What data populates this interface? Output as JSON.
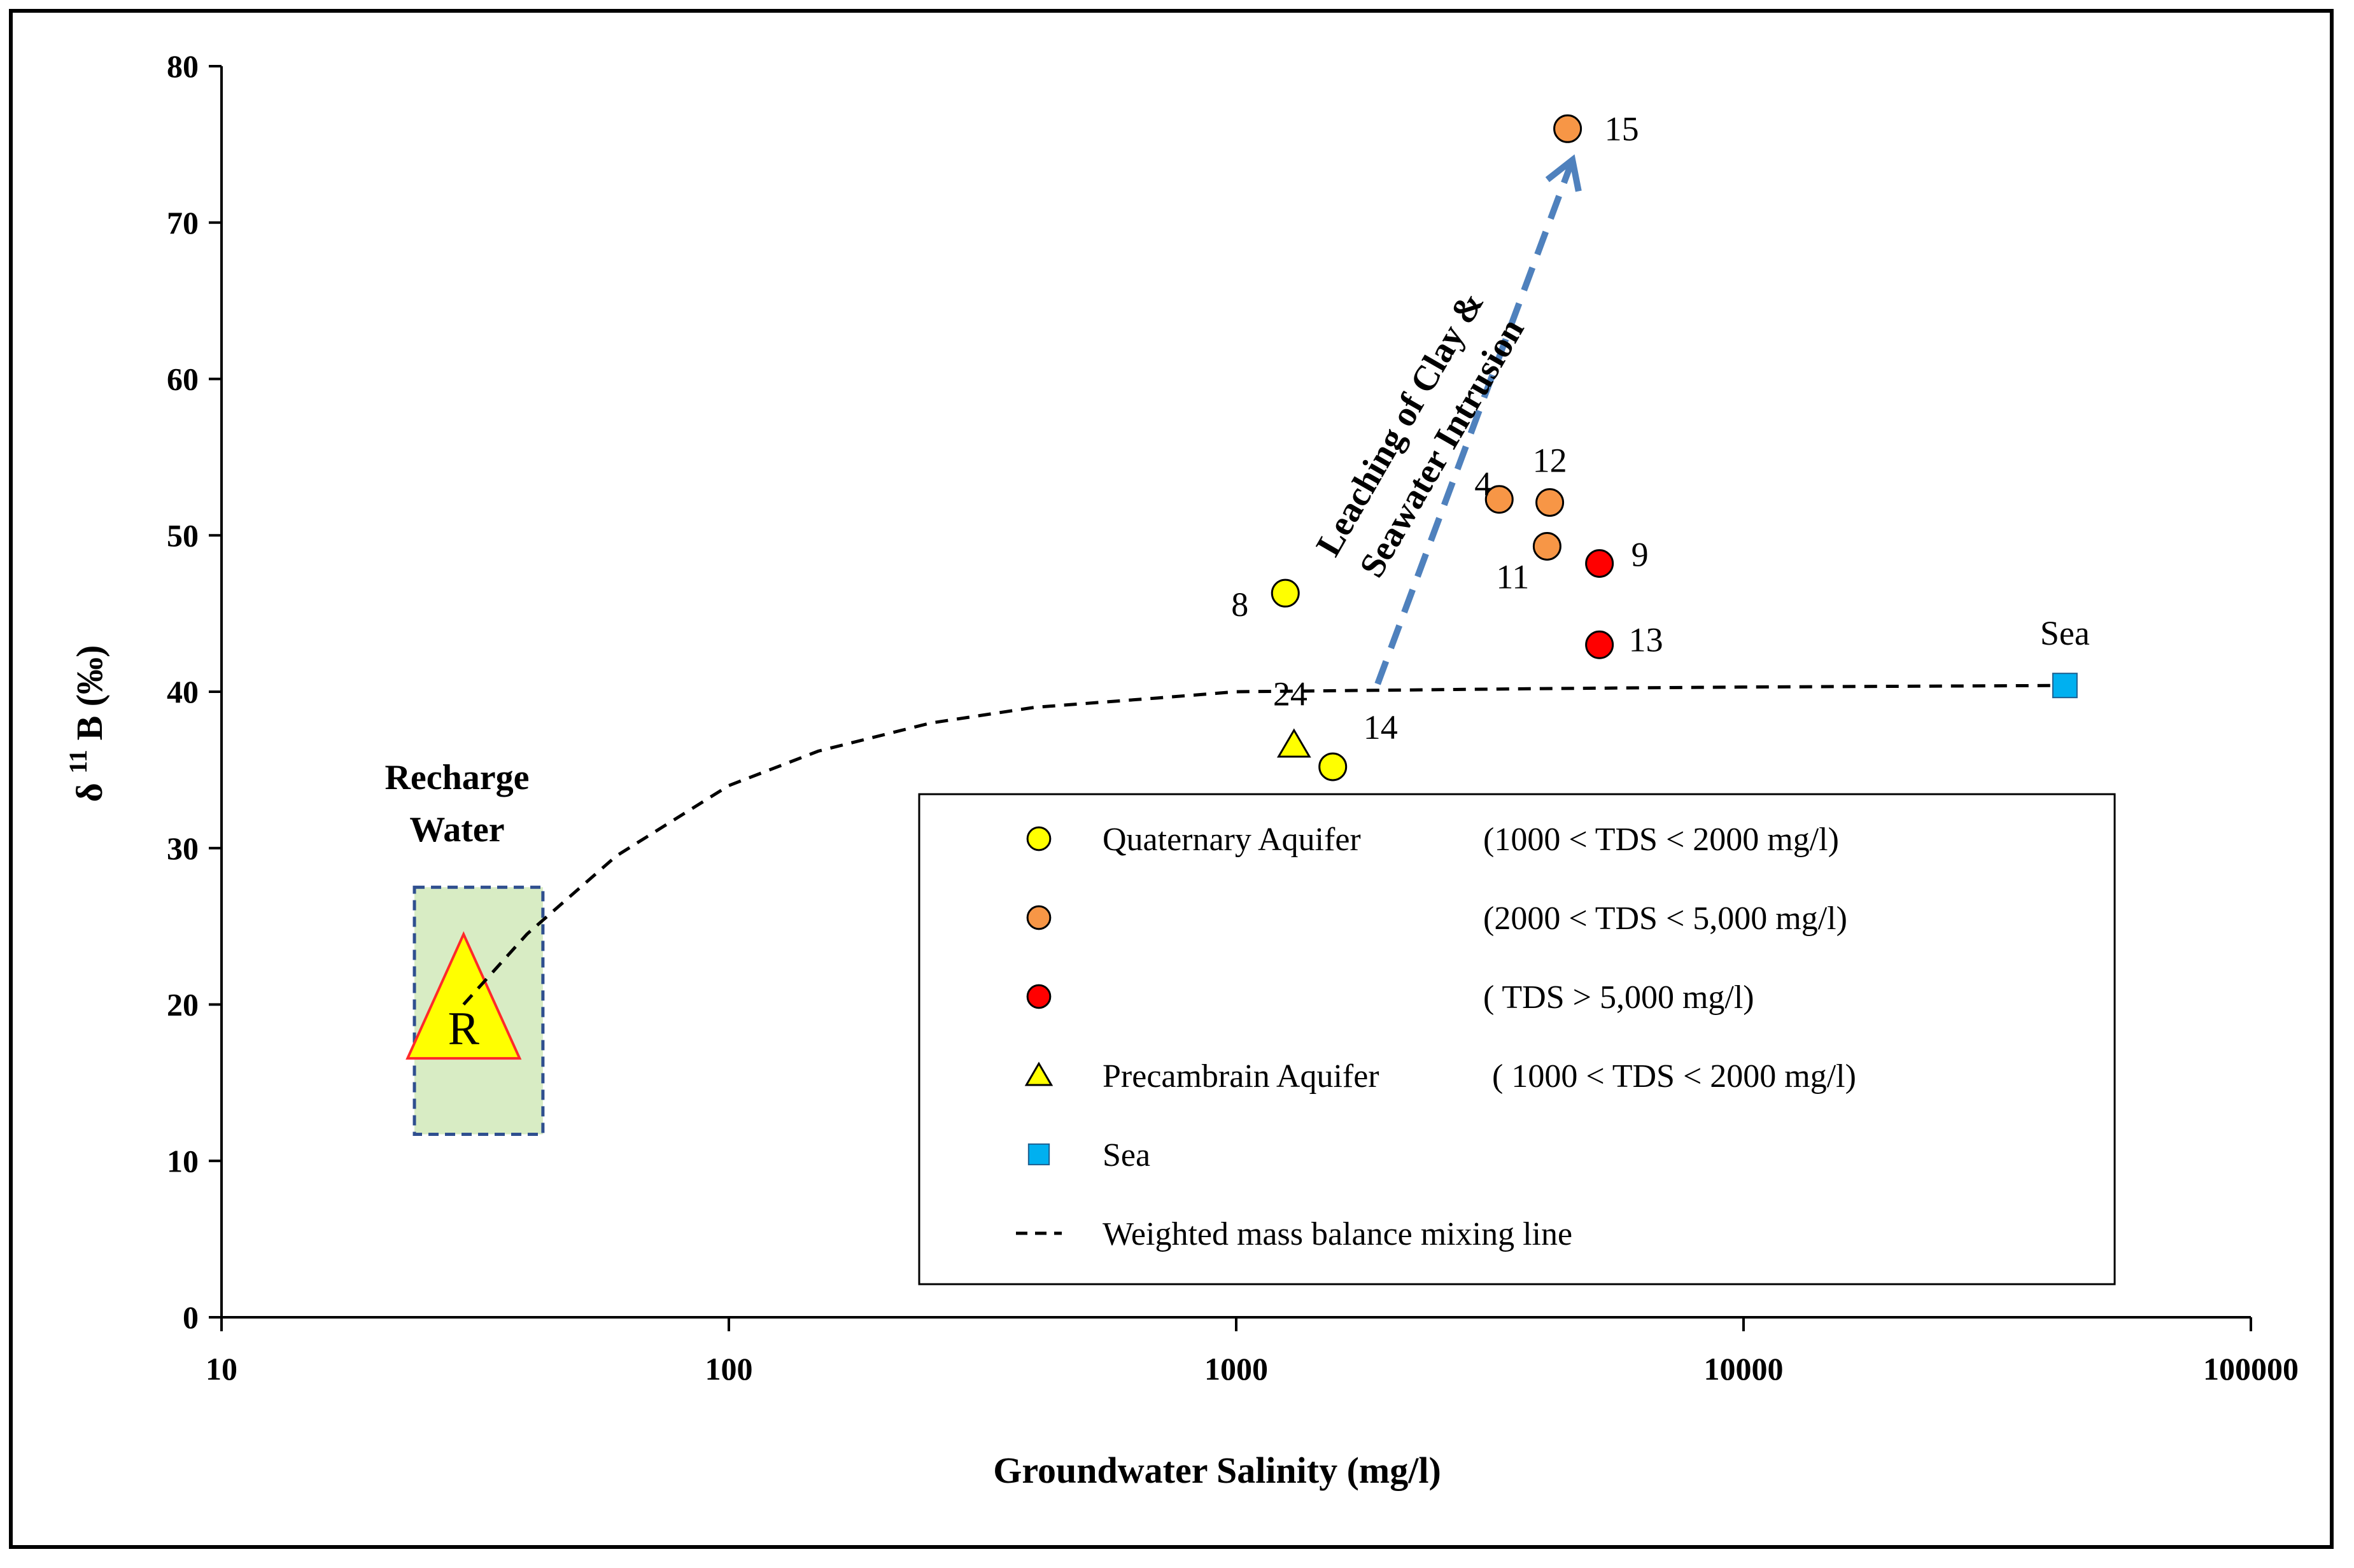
{
  "chart_data": {
    "type": "scatter",
    "title": "",
    "xlabel": "Groundwater Salinity (mg/l)",
    "ylabel_parts": [
      "δ",
      "11",
      "B",
      "(‰)"
    ],
    "x_scale": "log",
    "xlim": [
      10,
      100000
    ],
    "ylim": [
      0,
      80
    ],
    "x_ticks": [
      "10",
      "100",
      "1000",
      "10000",
      "100000"
    ],
    "y_ticks": [
      "0",
      "10",
      "20",
      "30",
      "40",
      "50",
      "60",
      "70",
      "80"
    ],
    "grid": false,
    "legend_position": "bottom-right",
    "series": [
      {
        "name": "Quaternary Aquifer (1000 < TDS < 2000 mg/l)",
        "marker": "circle",
        "color": "#ffff00",
        "points": [
          {
            "x": 1250,
            "y": 46.3,
            "label": "8"
          },
          {
            "x": 1550,
            "y": 35.2,
            "label": "14"
          }
        ]
      },
      {
        "name": "Quaternary Aquifer (2000 < TDS < 5,000 mg/l)",
        "marker": "circle",
        "color": "#f79646",
        "points": [
          {
            "x": 3300,
            "y": 52.3,
            "label": "4"
          },
          {
            "x": 4150,
            "y": 52.1,
            "label": "12"
          },
          {
            "x": 4100,
            "y": 49.3,
            "label": "11"
          },
          {
            "x": 4500,
            "y": 76.0,
            "label": "15"
          }
        ]
      },
      {
        "name": "Quaternary Aquifer (TDS > 5,000 mg/l)",
        "marker": "circle",
        "color": "#ff0000",
        "points": [
          {
            "x": 5200,
            "y": 48.2,
            "label": "9"
          },
          {
            "x": 5200,
            "y": 43.0,
            "label": "13"
          }
        ]
      },
      {
        "name": "Precambrain Aquifer (1000 < TDS < 2000 mg/l)",
        "marker": "triangle",
        "color": "#ffff00",
        "points": [
          {
            "x": 1300,
            "y": 36.6,
            "label": "24"
          }
        ]
      },
      {
        "name": "Sea",
        "marker": "square",
        "color": "#00b0f0",
        "points": [
          {
            "x": 43000,
            "y": 40.4,
            "label": "Sea"
          }
        ]
      }
    ],
    "mixing_line": {
      "name": "Weighted mass balance mixing line",
      "x": [
        30,
        40,
        60,
        100,
        150,
        250,
        400,
        700,
        1000,
        2000,
        4000,
        10000,
        43000
      ],
      "y": [
        20,
        24.5,
        29.5,
        34,
        36.2,
        38,
        39,
        39.6,
        40,
        40.1,
        40.2,
        40.3,
        40.4
      ]
    },
    "recharge": {
      "marker_letter": "R",
      "x": 30,
      "y": 19,
      "box_x": [
        24,
        43
      ],
      "box_y": [
        11.7,
        27.5
      ],
      "label": [
        "Recharge",
        "Water"
      ]
    },
    "trend_arrow": {
      "from": {
        "x": 1900,
        "y": 40.5
      },
      "to": {
        "x": 4600,
        "y": 74
      },
      "label": [
        "Leaching of Clay &",
        "Seawater Intrusion"
      ]
    },
    "legend": [
      {
        "marker": "circle",
        "color": "#ffff00",
        "text_a": "Quaternary Aquifer",
        "text_b": "(1000 < TDS < 2000 mg/l)"
      },
      {
        "marker": "circle",
        "color": "#f79646",
        "text_a": "",
        "text_b": "(2000 < TDS < 5,000 mg/l)"
      },
      {
        "marker": "circle",
        "color": "#ff0000",
        "text_a": "",
        "text_b": "(           TDS > 5,000 mg/l)"
      },
      {
        "marker": "triangle",
        "color": "#ffff00",
        "text_a": "Precambrain Aquifer",
        "text_b": "(           1000 < TDS < 2000 mg/l)"
      },
      {
        "marker": "square",
        "color": "#00b0f0",
        "text_a": "Sea",
        "text_b": ""
      },
      {
        "marker": "dash",
        "color": "#000000",
        "text_a": "Weighted mass balance mixing line",
        "text_b": ""
      }
    ]
  }
}
